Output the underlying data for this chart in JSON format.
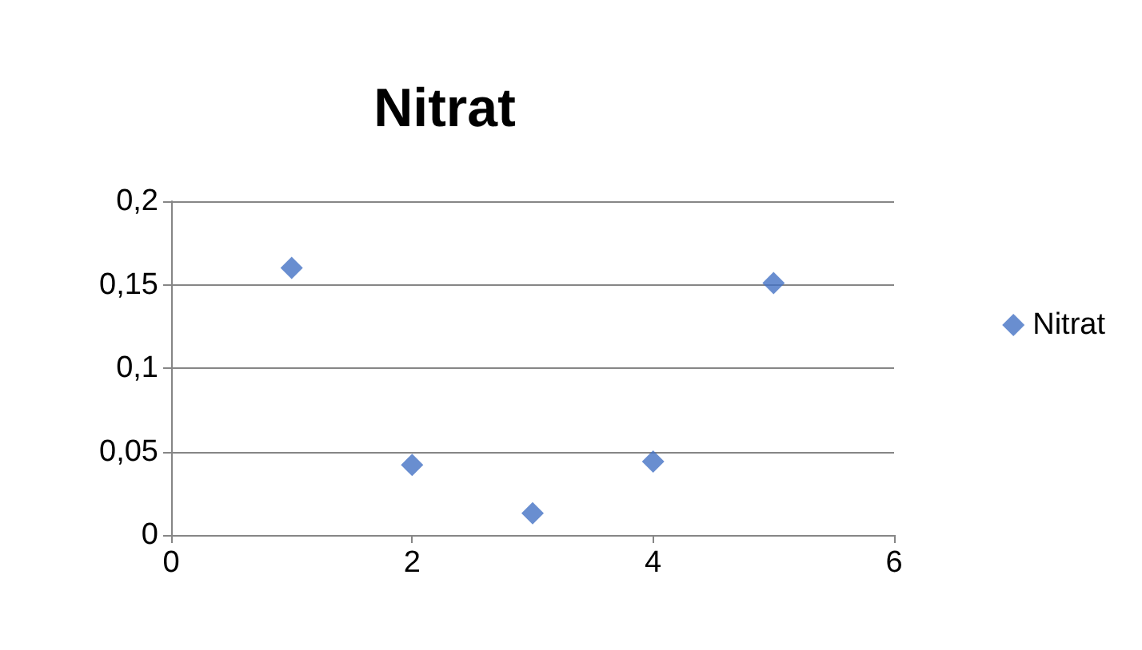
{
  "chart_data": {
    "type": "scatter",
    "title": "Nitrat",
    "x": [
      1,
      2,
      3,
      4,
      5
    ],
    "series": [
      {
        "name": "Nitrat",
        "color": "#4472c4",
        "values": [
          0.16,
          0.042,
          0.013,
          0.044,
          0.151
        ]
      }
    ],
    "xlim": [
      0,
      6
    ],
    "xticks": [
      0,
      2,
      4,
      6
    ],
    "ylim": [
      0,
      0.2
    ],
    "yticks": [
      0,
      {
        "value": 0.05,
        "label": "0,05"
      },
      {
        "value": 0.1,
        "label": "0,1"
      },
      {
        "value": 0.15,
        "label": "0,15"
      },
      {
        "value": 0.2,
        "label": "0,2"
      }
    ],
    "grid": "y",
    "legend": "right",
    "marker": "diamond"
  }
}
